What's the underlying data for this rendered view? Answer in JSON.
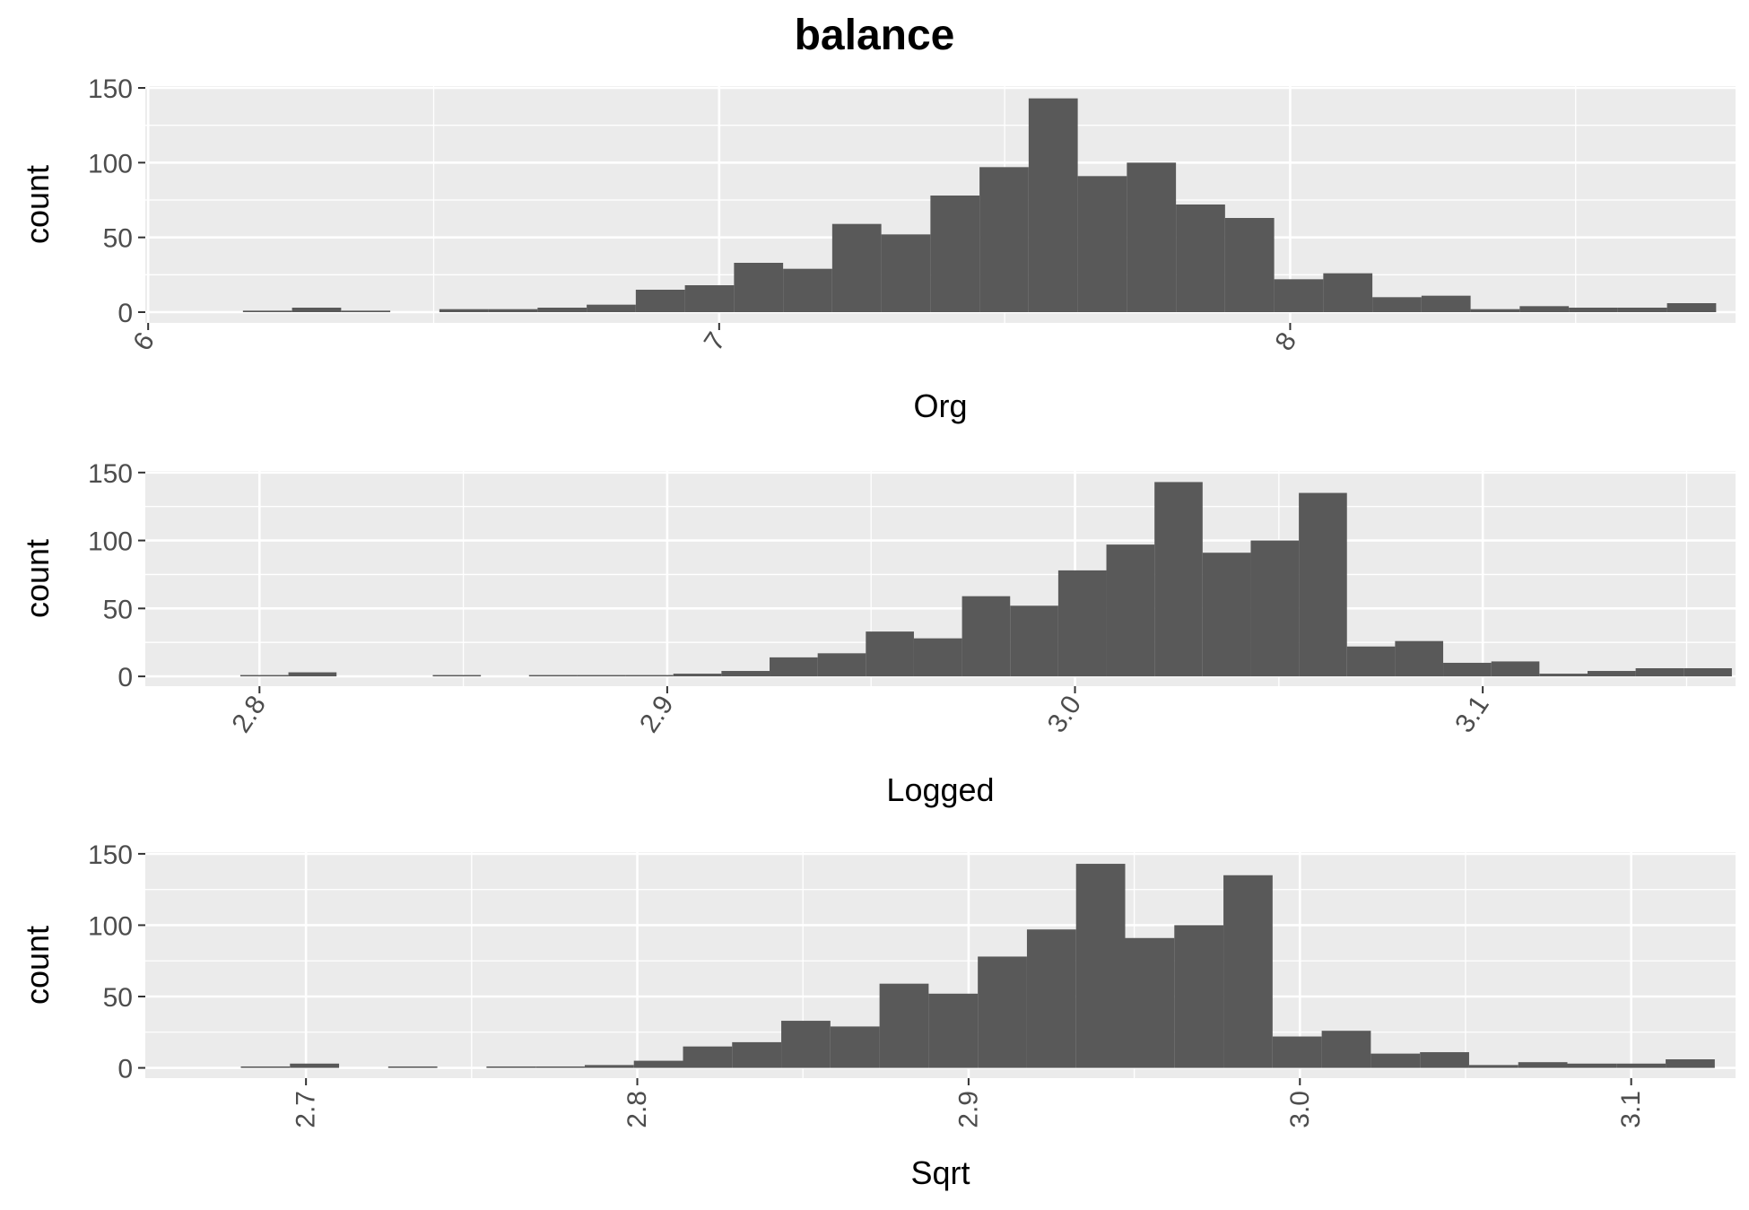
{
  "title": "balance",
  "colors": {
    "panel_bg": "#EBEBEB",
    "grid": "#FFFFFF",
    "bar": "#595959",
    "tick": "#333333"
  },
  "chart_data": [
    {
      "type": "bar",
      "xlabel": "Org",
      "ylabel": "count",
      "xlim": [
        5.995,
        8.78
      ],
      "ylim": [
        -7.2,
        151.2
      ],
      "xticks": [
        "6",
        "7",
        "8"
      ],
      "yticks": [
        "0",
        "50",
        "100",
        "150"
      ],
      "bin_start": 6.08,
      "bin_width": 0.086,
      "values": [
        0,
        1,
        3,
        1,
        0,
        2,
        2,
        3,
        5,
        15,
        18,
        33,
        29,
        59,
        52,
        78,
        97,
        143,
        91,
        100,
        72,
        63,
        22,
        26,
        10,
        11,
        2,
        4,
        3,
        3,
        6
      ]
    },
    {
      "type": "bar",
      "xlabel": "Logged",
      "ylabel": "count",
      "xlim": [
        2.772,
        3.162
      ],
      "ylim": [
        -7.2,
        151.2
      ],
      "xticks": [
        "2.8",
        "2.9",
        "3.0",
        "3.1"
      ],
      "yticks": [
        "0",
        "50",
        "100",
        "150"
      ],
      "bin_start": 2.7835,
      "bin_width": 0.0118,
      "values": [
        0,
        1,
        3,
        0,
        0,
        1,
        0,
        1,
        1,
        1,
        2,
        4,
        14,
        17,
        33,
        28,
        59,
        52,
        78,
        97,
        143,
        91,
        100,
        135,
        22,
        26,
        10,
        11,
        2,
        4,
        6,
        6
      ]
    },
    {
      "type": "bar",
      "xlabel": "Sqrt",
      "ylabel": "count",
      "xlim": [
        2.6515,
        3.1315
      ],
      "ylim": [
        -7.2,
        151.2
      ],
      "xticks": [
        "2.7",
        "2.8",
        "2.9",
        "3.0",
        "3.1"
      ],
      "yticks": [
        "0",
        "50",
        "100",
        "150"
      ],
      "bin_start": 2.6655,
      "bin_width": 0.01483,
      "values": [
        0,
        1,
        3,
        0,
        1,
        0,
        1,
        1,
        2,
        5,
        15,
        18,
        33,
        29,
        59,
        52,
        78,
        97,
        143,
        91,
        100,
        135,
        22,
        26,
        10,
        11,
        2,
        4,
        3,
        3,
        6
      ]
    }
  ]
}
